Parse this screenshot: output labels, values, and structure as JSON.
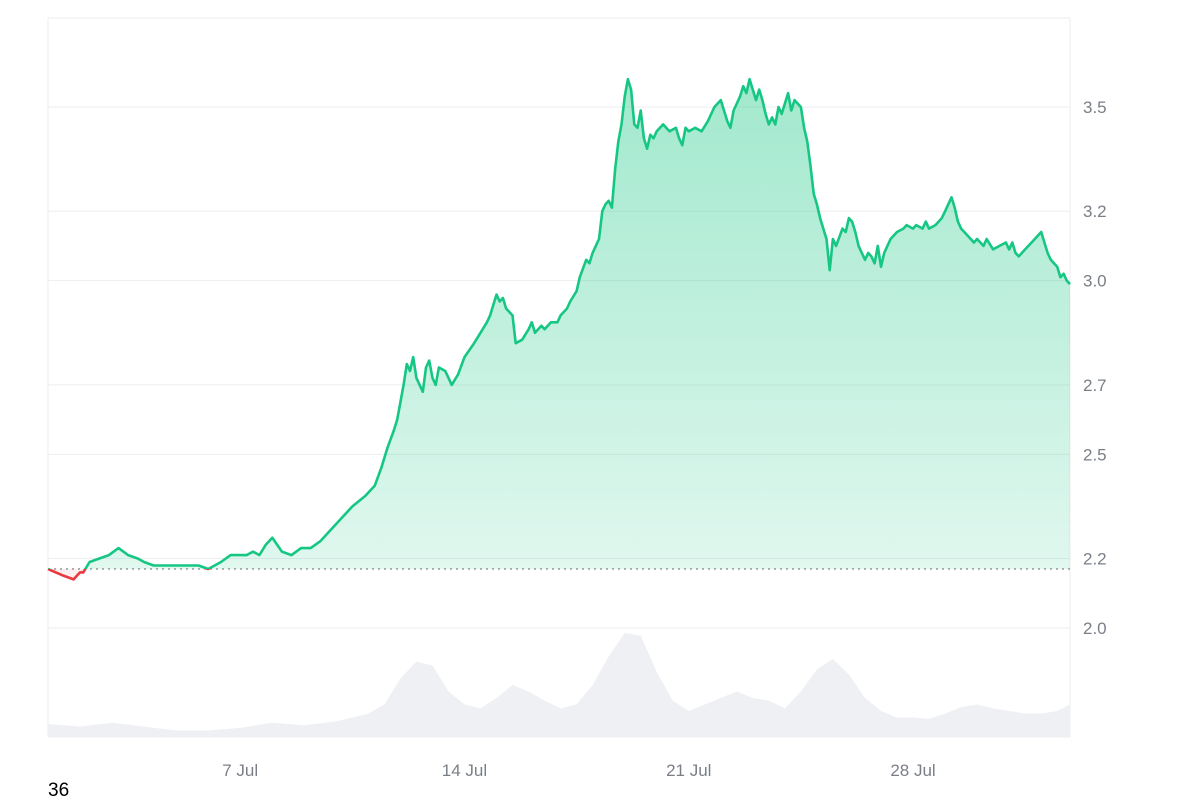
{
  "chart_data": {
    "type": "area",
    "y_ticks": [
      2.0,
      2.2,
      2.5,
      2.7,
      3.0,
      3.2,
      3.5
    ],
    "x_ticks": [
      "7 Jul",
      "14 Jul",
      "21 Jul",
      "28 Jul"
    ],
    "baseline": 2.17,
    "grid": true,
    "colors": {
      "up": "#16c784",
      "down": "#ea3943",
      "volume": "#eef0f3",
      "grid": "#edeef0"
    },
    "series": [
      {
        "values": [
          [
            0.0,
            2.17
          ],
          [
            0.5,
            2.15
          ],
          [
            0.8,
            2.14
          ],
          [
            1.0,
            2.16
          ],
          [
            1.1,
            2.16
          ],
          [
            1.3,
            2.19
          ],
          [
            1.6,
            2.2
          ],
          [
            1.9,
            2.21
          ],
          [
            2.2,
            2.23
          ],
          [
            2.5,
            2.21
          ],
          [
            2.8,
            2.2
          ],
          [
            3.0,
            2.19
          ],
          [
            3.3,
            2.18
          ],
          [
            3.7,
            2.18
          ],
          [
            4.0,
            2.18
          ],
          [
            4.3,
            2.18
          ],
          [
            4.5,
            2.18
          ],
          [
            4.7,
            2.18
          ],
          [
            5.0,
            2.17
          ],
          [
            5.2,
            2.18
          ],
          [
            5.4,
            2.19
          ],
          [
            5.7,
            2.21
          ],
          [
            6.0,
            2.21
          ],
          [
            6.2,
            2.21
          ],
          [
            6.4,
            2.22
          ],
          [
            6.6,
            2.21
          ],
          [
            6.8,
            2.24
          ],
          [
            7.0,
            2.26
          ],
          [
            7.3,
            2.22
          ],
          [
            7.6,
            2.21
          ],
          [
            7.9,
            2.23
          ],
          [
            8.2,
            2.23
          ],
          [
            8.5,
            2.25
          ],
          [
            8.8,
            2.28
          ],
          [
            9.2,
            2.32
          ],
          [
            9.5,
            2.35
          ],
          [
            9.9,
            2.38
          ],
          [
            10.2,
            2.41
          ],
          [
            10.4,
            2.46
          ],
          [
            10.6,
            2.52
          ],
          [
            10.8,
            2.57
          ],
          [
            10.9,
            2.6
          ],
          [
            11.1,
            2.7
          ],
          [
            11.2,
            2.76
          ],
          [
            11.3,
            2.74
          ],
          [
            11.4,
            2.78
          ],
          [
            11.5,
            2.72
          ],
          [
            11.7,
            2.68
          ],
          [
            11.8,
            2.75
          ],
          [
            11.9,
            2.77
          ],
          [
            12.0,
            2.72
          ],
          [
            12.1,
            2.7
          ],
          [
            12.2,
            2.75
          ],
          [
            12.4,
            2.74
          ],
          [
            12.6,
            2.7
          ],
          [
            12.8,
            2.73
          ],
          [
            13.0,
            2.78
          ],
          [
            13.3,
            2.82
          ],
          [
            13.5,
            2.85
          ],
          [
            13.7,
            2.88
          ],
          [
            13.8,
            2.9
          ],
          [
            13.9,
            2.93
          ],
          [
            14.0,
            2.96
          ],
          [
            14.1,
            2.94
          ],
          [
            14.2,
            2.95
          ],
          [
            14.3,
            2.92
          ],
          [
            14.5,
            2.9
          ],
          [
            14.6,
            2.82
          ],
          [
            14.8,
            2.83
          ],
          [
            15.0,
            2.86
          ],
          [
            15.1,
            2.88
          ],
          [
            15.2,
            2.85
          ],
          [
            15.4,
            2.87
          ],
          [
            15.5,
            2.86
          ],
          [
            15.7,
            2.88
          ],
          [
            15.9,
            2.88
          ],
          [
            16.0,
            2.9
          ],
          [
            16.2,
            2.92
          ],
          [
            16.3,
            2.94
          ],
          [
            16.5,
            2.97
          ],
          [
            16.6,
            3.01
          ],
          [
            16.8,
            3.06
          ],
          [
            16.9,
            3.05
          ],
          [
            17.0,
            3.08
          ],
          [
            17.1,
            3.1
          ],
          [
            17.2,
            3.12
          ],
          [
            17.3,
            3.2
          ],
          [
            17.4,
            3.22
          ],
          [
            17.5,
            3.23
          ],
          [
            17.6,
            3.21
          ],
          [
            17.7,
            3.32
          ],
          [
            17.8,
            3.4
          ],
          [
            17.9,
            3.45
          ],
          [
            18.0,
            3.53
          ],
          [
            18.1,
            3.58
          ],
          [
            18.2,
            3.55
          ],
          [
            18.3,
            3.45
          ],
          [
            18.4,
            3.44
          ],
          [
            18.5,
            3.49
          ],
          [
            18.6,
            3.41
          ],
          [
            18.7,
            3.38
          ],
          [
            18.8,
            3.42
          ],
          [
            18.9,
            3.41
          ],
          [
            19.0,
            3.43
          ],
          [
            19.2,
            3.45
          ],
          [
            19.4,
            3.43
          ],
          [
            19.6,
            3.44
          ],
          [
            19.7,
            3.41
          ],
          [
            19.8,
            3.39
          ],
          [
            19.9,
            3.44
          ],
          [
            20.0,
            3.43
          ],
          [
            20.2,
            3.44
          ],
          [
            20.4,
            3.43
          ],
          [
            20.6,
            3.46
          ],
          [
            20.8,
            3.5
          ],
          [
            21.0,
            3.52
          ],
          [
            21.1,
            3.49
          ],
          [
            21.2,
            3.46
          ],
          [
            21.3,
            3.44
          ],
          [
            21.4,
            3.49
          ],
          [
            21.5,
            3.51
          ],
          [
            21.6,
            3.53
          ],
          [
            21.7,
            3.56
          ],
          [
            21.8,
            3.54
          ],
          [
            21.9,
            3.58
          ],
          [
            22.0,
            3.55
          ],
          [
            22.1,
            3.52
          ],
          [
            22.2,
            3.55
          ],
          [
            22.3,
            3.52
          ],
          [
            22.4,
            3.48
          ],
          [
            22.5,
            3.45
          ],
          [
            22.6,
            3.47
          ],
          [
            22.7,
            3.45
          ],
          [
            22.8,
            3.5
          ],
          [
            22.9,
            3.48
          ],
          [
            23.0,
            3.51
          ],
          [
            23.1,
            3.54
          ],
          [
            23.2,
            3.49
          ],
          [
            23.3,
            3.52
          ],
          [
            23.5,
            3.5
          ],
          [
            23.6,
            3.44
          ],
          [
            23.7,
            3.4
          ],
          [
            23.8,
            3.33
          ],
          [
            23.9,
            3.25
          ],
          [
            24.0,
            3.22
          ],
          [
            24.1,
            3.18
          ],
          [
            24.2,
            3.15
          ],
          [
            24.3,
            3.12
          ],
          [
            24.4,
            3.03
          ],
          [
            24.5,
            3.12
          ],
          [
            24.6,
            3.1
          ],
          [
            24.8,
            3.15
          ],
          [
            24.9,
            3.14
          ],
          [
            25.0,
            3.18
          ],
          [
            25.1,
            3.17
          ],
          [
            25.2,
            3.14
          ],
          [
            25.3,
            3.1
          ],
          [
            25.4,
            3.08
          ],
          [
            25.5,
            3.06
          ],
          [
            25.6,
            3.08
          ],
          [
            25.7,
            3.07
          ],
          [
            25.8,
            3.05
          ],
          [
            25.9,
            3.1
          ],
          [
            26.0,
            3.04
          ],
          [
            26.1,
            3.08
          ],
          [
            26.2,
            3.1
          ],
          [
            26.3,
            3.12
          ],
          [
            26.4,
            3.13
          ],
          [
            26.5,
            3.14
          ],
          [
            26.7,
            3.15
          ],
          [
            26.8,
            3.16
          ],
          [
            27.0,
            3.15
          ],
          [
            27.1,
            3.16
          ],
          [
            27.3,
            3.15
          ],
          [
            27.4,
            3.17
          ],
          [
            27.5,
            3.15
          ],
          [
            27.7,
            3.16
          ],
          [
            27.9,
            3.18
          ],
          [
            28.0,
            3.2
          ],
          [
            28.1,
            3.22
          ],
          [
            28.2,
            3.24
          ],
          [
            28.3,
            3.21
          ],
          [
            28.4,
            3.17
          ],
          [
            28.5,
            3.15
          ],
          [
            28.6,
            3.14
          ],
          [
            28.7,
            3.13
          ],
          [
            28.8,
            3.12
          ],
          [
            28.9,
            3.11
          ],
          [
            29.0,
            3.12
          ],
          [
            29.2,
            3.1
          ],
          [
            29.3,
            3.12
          ],
          [
            29.5,
            3.09
          ],
          [
            29.7,
            3.1
          ],
          [
            29.9,
            3.11
          ],
          [
            30.0,
            3.09
          ],
          [
            30.1,
            3.11
          ],
          [
            30.2,
            3.08
          ],
          [
            30.3,
            3.07
          ],
          [
            30.5,
            3.09
          ],
          [
            30.6,
            3.1
          ],
          [
            30.7,
            3.11
          ],
          [
            30.9,
            3.13
          ],
          [
            31.0,
            3.14
          ],
          [
            31.1,
            3.11
          ],
          [
            31.2,
            3.08
          ],
          [
            31.3,
            3.06
          ],
          [
            31.5,
            3.04
          ],
          [
            31.6,
            3.01
          ],
          [
            31.7,
            3.02
          ],
          [
            31.8,
            3.0
          ],
          [
            31.9,
            2.99
          ]
        ]
      }
    ],
    "volume": [
      [
        0.0,
        0.1
      ],
      [
        1.0,
        0.08
      ],
      [
        2.0,
        0.11
      ],
      [
        3.0,
        0.08
      ],
      [
        4.0,
        0.05
      ],
      [
        5.0,
        0.05
      ],
      [
        6.0,
        0.07
      ],
      [
        7.0,
        0.11
      ],
      [
        8.0,
        0.09
      ],
      [
        9.0,
        0.12
      ],
      [
        10.0,
        0.18
      ],
      [
        10.5,
        0.25
      ],
      [
        11.0,
        0.45
      ],
      [
        11.5,
        0.58
      ],
      [
        12.0,
        0.55
      ],
      [
        12.5,
        0.35
      ],
      [
        13.0,
        0.25
      ],
      [
        13.5,
        0.22
      ],
      [
        14.0,
        0.3
      ],
      [
        14.5,
        0.4
      ],
      [
        15.0,
        0.35
      ],
      [
        15.5,
        0.28
      ],
      [
        16.0,
        0.22
      ],
      [
        16.5,
        0.25
      ],
      [
        17.0,
        0.4
      ],
      [
        17.5,
        0.62
      ],
      [
        18.0,
        0.8
      ],
      [
        18.5,
        0.78
      ],
      [
        19.0,
        0.5
      ],
      [
        19.5,
        0.28
      ],
      [
        20.0,
        0.2
      ],
      [
        20.5,
        0.25
      ],
      [
        21.0,
        0.3
      ],
      [
        21.5,
        0.35
      ],
      [
        22.0,
        0.3
      ],
      [
        22.5,
        0.28
      ],
      [
        23.0,
        0.22
      ],
      [
        23.5,
        0.35
      ],
      [
        24.0,
        0.52
      ],
      [
        24.5,
        0.6
      ],
      [
        25.0,
        0.48
      ],
      [
        25.5,
        0.3
      ],
      [
        26.0,
        0.2
      ],
      [
        26.5,
        0.15
      ],
      [
        27.0,
        0.15
      ],
      [
        27.5,
        0.14
      ],
      [
        28.0,
        0.18
      ],
      [
        28.5,
        0.23
      ],
      [
        29.0,
        0.25
      ],
      [
        29.5,
        0.22
      ],
      [
        30.0,
        0.2
      ],
      [
        30.5,
        0.18
      ],
      [
        31.0,
        0.18
      ],
      [
        31.5,
        0.2
      ],
      [
        31.9,
        0.25
      ]
    ]
  },
  "footer": {
    "corner_value": "36"
  }
}
